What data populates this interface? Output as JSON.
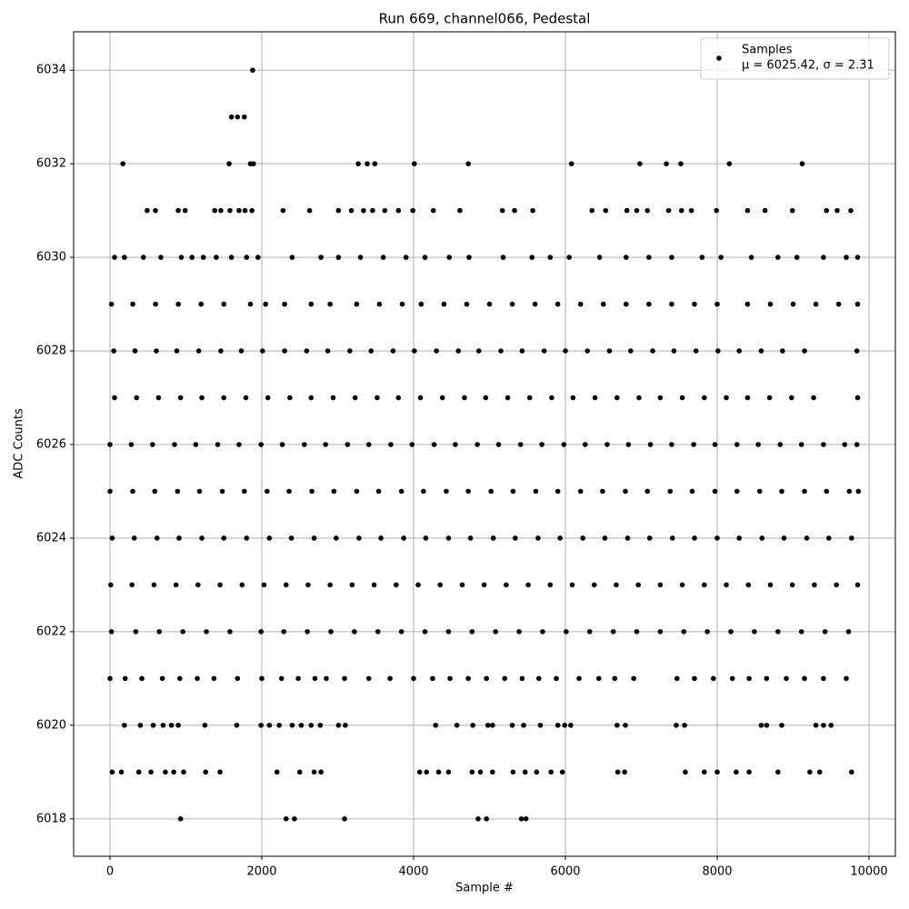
{
  "chart_data": {
    "type": "scatter",
    "title": "Run 669, channel066, Pedestal",
    "xlabel": "Sample #",
    "ylabel": "ADC Counts",
    "xlim": [
      -479,
      10347
    ],
    "ylim": [
      6017.2,
      6034.82
    ],
    "xticks": [
      0,
      2000,
      4000,
      6000,
      8000,
      10000
    ],
    "yticks": [
      6018,
      6020,
      6022,
      6024,
      6026,
      6028,
      6030,
      6032,
      6034
    ],
    "grid": true,
    "legend": "upper right",
    "series": [
      {
        "name": "Samples",
        "legend_note": "μ = 6025.42, σ = 2.31",
        "color": "#000000",
        "x": [
          1880,
          1600,
          1680,
          1770,
          170,
          1570,
          1850,
          1890,
          3270,
          3390,
          3490,
          4010,
          4720,
          6080,
          6980,
          7330,
          7520,
          8160,
          9120,
          490,
          600,
          900,
          990,
          1380,
          1460,
          1580,
          1700,
          1780,
          1870,
          2280,
          2630,
          3010,
          3180,
          3340,
          3460,
          3620,
          3800,
          3990,
          4260,
          4610,
          5170,
          5330,
          5570,
          6350,
          6530,
          6810,
          6940,
          7080,
          7360,
          7530,
          7660,
          7990,
          8400,
          8630,
          8990,
          9440,
          9580,
          9760,
          60,
          190,
          440,
          670,
          940,
          1080,
          1230,
          1400,
          1600,
          1800,
          1950,
          2400,
          2780,
          3010,
          3300,
          3600,
          3900,
          4150,
          4470,
          4730,
          5180,
          5560,
          5800,
          6050,
          6450,
          6800,
          7100,
          7400,
          7800,
          8050,
          8450,
          8800,
          9050,
          9400,
          9700,
          9850,
          20,
          300,
          600,
          900,
          1200,
          1500,
          1850,
          2050,
          2300,
          2650,
          2900,
          3250,
          3550,
          3850,
          4100,
          4400,
          4700,
          5000,
          5300,
          5600,
          5900,
          6200,
          6500,
          6800,
          7100,
          7400,
          7700,
          8000,
          8400,
          8700,
          9000,
          9300,
          9600,
          9850,
          50,
          330,
          610,
          880,
          1170,
          1460,
          1730,
          2010,
          2300,
          2590,
          2870,
          3160,
          3440,
          3730,
          4010,
          4300,
          4590,
          4860,
          5150,
          5430,
          5720,
          6000,
          6290,
          6580,
          6860,
          7150,
          7430,
          7720,
          8010,
          8290,
          8580,
          8860,
          9150,
          9840,
          60,
          350,
          640,
          930,
          1210,
          1500,
          1790,
          2080,
          2370,
          2650,
          2940,
          3230,
          3520,
          3800,
          4090,
          4380,
          4670,
          4950,
          5240,
          5530,
          5820,
          6100,
          6390,
          6680,
          6970,
          7250,
          7540,
          7830,
          8120,
          8400,
          8690,
          8980,
          9270,
          9850,
          0,
          280,
          560,
          850,
          1130,
          1420,
          1700,
          1990,
          2270,
          2560,
          2840,
          3130,
          3410,
          3700,
          3980,
          4270,
          4550,
          4840,
          5120,
          5410,
          5690,
          5980,
          6260,
          6550,
          6830,
          7120,
          7400,
          7690,
          7970,
          8260,
          8540,
          8830,
          9110,
          9400,
          9680,
          9840,
          0,
          300,
          590,
          890,
          1180,
          1480,
          1770,
          2070,
          2360,
          2660,
          2950,
          3250,
          3540,
          3840,
          4130,
          4430,
          4720,
          5020,
          5310,
          5610,
          5900,
          6200,
          6490,
          6790,
          7080,
          7380,
          7670,
          7970,
          8260,
          8560,
          8850,
          9150,
          9440,
          9740,
          9860,
          30,
          320,
          620,
          910,
          1210,
          1500,
          1800,
          2100,
          2390,
          2690,
          2980,
          3280,
          3570,
          3870,
          4160,
          4460,
          4750,
          5050,
          5340,
          5640,
          5930,
          6230,
          6520,
          6820,
          7110,
          7410,
          7700,
          8000,
          8290,
          8590,
          8880,
          9180,
          9470,
          9770,
          10,
          290,
          580,
          870,
          1160,
          1450,
          1740,
          2030,
          2320,
          2610,
          2900,
          3190,
          3480,
          3770,
          4060,
          4350,
          4640,
          4930,
          5220,
          5510,
          5800,
          6090,
          6380,
          6670,
          6960,
          7250,
          7540,
          7830,
          8120,
          8410,
          8700,
          8990,
          9280,
          9570,
          9850,
          20,
          340,
          650,
          960,
          1270,
          1580,
          1990,
          2290,
          2600,
          2910,
          3220,
          3530,
          3840,
          4150,
          4460,
          4770,
          5080,
          5390,
          5700,
          6010,
          6320,
          6630,
          6940,
          7250,
          7560,
          7870,
          8180,
          8490,
          8800,
          9110,
          9420,
          9730,
          0,
          200,
          420,
          690,
          920,
          1150,
          1370,
          1680,
          2000,
          2260,
          2480,
          2700,
          2850,
          3090,
          3410,
          3690,
          4000,
          4250,
          4480,
          4720,
          4960,
          5200,
          5430,
          5650,
          5880,
          6180,
          6440,
          6650,
          6900,
          7470,
          7700,
          7950,
          8200,
          8420,
          8650,
          8910,
          9150,
          9400,
          9700,
          190,
          400,
          570,
          700,
          810,
          900,
          1250,
          1670,
          1990,
          2100,
          2230,
          2400,
          2520,
          2650,
          2770,
          3010,
          3100,
          4290,
          4570,
          4780,
          4980,
          5040,
          5300,
          5450,
          5670,
          5900,
          5990,
          6070,
          6680,
          6790,
          7460,
          7570,
          8580,
          8650,
          8850,
          9300,
          9400,
          9500,
          30,
          150,
          380,
          540,
          730,
          840,
          970,
          1260,
          1450,
          2200,
          2500,
          2690,
          2780,
          4080,
          4170,
          4330,
          4460,
          4770,
          4880,
          5040,
          5310,
          5470,
          5620,
          5810,
          5960,
          6690,
          6780,
          7580,
          7830,
          8000,
          8250,
          8420,
          8800,
          9220,
          9350,
          9770,
          930,
          2320,
          2430,
          3090,
          4850,
          4960,
          5420,
          5480
        ],
        "values": [
          6034,
          6033,
          6033,
          6033,
          6032,
          6032,
          6032,
          6032,
          6032,
          6032,
          6032,
          6032,
          6032,
          6032,
          6032,
          6032,
          6032,
          6032,
          6032,
          6031,
          6031,
          6031,
          6031,
          6031,
          6031,
          6031,
          6031,
          6031,
          6031,
          6031,
          6031,
          6031,
          6031,
          6031,
          6031,
          6031,
          6031,
          6031,
          6031,
          6031,
          6031,
          6031,
          6031,
          6031,
          6031,
          6031,
          6031,
          6031,
          6031,
          6031,
          6031,
          6031,
          6031,
          6031,
          6031,
          6031,
          6031,
          6031,
          6030,
          6030,
          6030,
          6030,
          6030,
          6030,
          6030,
          6030,
          6030,
          6030,
          6030,
          6030,
          6030,
          6030,
          6030,
          6030,
          6030,
          6030,
          6030,
          6030,
          6030,
          6030,
          6030,
          6030,
          6030,
          6030,
          6030,
          6030,
          6030,
          6030,
          6030,
          6030,
          6030,
          6030,
          6030,
          6030,
          6029,
          6029,
          6029,
          6029,
          6029,
          6029,
          6029,
          6029,
          6029,
          6029,
          6029,
          6029,
          6029,
          6029,
          6029,
          6029,
          6029,
          6029,
          6029,
          6029,
          6029,
          6029,
          6029,
          6029,
          6029,
          6029,
          6029,
          6029,
          6029,
          6029,
          6029,
          6029,
          6029,
          6029,
          6028,
          6028,
          6028,
          6028,
          6028,
          6028,
          6028,
          6028,
          6028,
          6028,
          6028,
          6028,
          6028,
          6028,
          6028,
          6028,
          6028,
          6028,
          6028,
          6028,
          6028,
          6028,
          6028,
          6028,
          6028,
          6028,
          6028,
          6028,
          6028,
          6028,
          6028,
          6028,
          6028,
          6028,
          6027,
          6027,
          6027,
          6027,
          6027,
          6027,
          6027,
          6027,
          6027,
          6027,
          6027,
          6027,
          6027,
          6027,
          6027,
          6027,
          6027,
          6027,
          6027,
          6027,
          6027,
          6027,
          6027,
          6027,
          6027,
          6027,
          6027,
          6027,
          6027,
          6027,
          6027,
          6027,
          6027,
          6027,
          6026,
          6026,
          6026,
          6026,
          6026,
          6026,
          6026,
          6026,
          6026,
          6026,
          6026,
          6026,
          6026,
          6026,
          6026,
          6026,
          6026,
          6026,
          6026,
          6026,
          6026,
          6026,
          6026,
          6026,
          6026,
          6026,
          6026,
          6026,
          6026,
          6026,
          6026,
          6026,
          6026,
          6026,
          6026,
          6026,
          6025,
          6025,
          6025,
          6025,
          6025,
          6025,
          6025,
          6025,
          6025,
          6025,
          6025,
          6025,
          6025,
          6025,
          6025,
          6025,
          6025,
          6025,
          6025,
          6025,
          6025,
          6025,
          6025,
          6025,
          6025,
          6025,
          6025,
          6025,
          6025,
          6025,
          6025,
          6025,
          6025,
          6025,
          6025,
          6024,
          6024,
          6024,
          6024,
          6024,
          6024,
          6024,
          6024,
          6024,
          6024,
          6024,
          6024,
          6024,
          6024,
          6024,
          6024,
          6024,
          6024,
          6024,
          6024,
          6024,
          6024,
          6024,
          6024,
          6024,
          6024,
          6024,
          6024,
          6024,
          6024,
          6024,
          6024,
          6024,
          6024,
          6023,
          6023,
          6023,
          6023,
          6023,
          6023,
          6023,
          6023,
          6023,
          6023,
          6023,
          6023,
          6023,
          6023,
          6023,
          6023,
          6023,
          6023,
          6023,
          6023,
          6023,
          6023,
          6023,
          6023,
          6023,
          6023,
          6023,
          6023,
          6023,
          6023,
          6023,
          6023,
          6023,
          6023,
          6023,
          6022,
          6022,
          6022,
          6022,
          6022,
          6022,
          6022,
          6022,
          6022,
          6022,
          6022,
          6022,
          6022,
          6022,
          6022,
          6022,
          6022,
          6022,
          6022,
          6022,
          6022,
          6022,
          6022,
          6022,
          6022,
          6022,
          6022,
          6022,
          6022,
          6022,
          6022,
          6022,
          6021,
          6021,
          6021,
          6021,
          6021,
          6021,
          6021,
          6021,
          6021,
          6021,
          6021,
          6021,
          6021,
          6021,
          6021,
          6021,
          6021,
          6021,
          6021,
          6021,
          6021,
          6021,
          6021,
          6021,
          6021,
          6021,
          6021,
          6021,
          6021,
          6021,
          6021,
          6021,
          6021,
          6021,
          6021,
          6021,
          6021,
          6021,
          6021,
          6020,
          6020,
          6020,
          6020,
          6020,
          6020,
          6020,
          6020,
          6020,
          6020,
          6020,
          6020,
          6020,
          6020,
          6020,
          6020,
          6020,
          6020,
          6020,
          6020,
          6020,
          6020,
          6020,
          6020,
          6020,
          6020,
          6020,
          6020,
          6020,
          6020,
          6020,
          6020,
          6020,
          6020,
          6020,
          6020,
          6020,
          6020,
          6019,
          6019,
          6019,
          6019,
          6019,
          6019,
          6019,
          6019,
          6019,
          6019,
          6019,
          6019,
          6019,
          6019,
          6019,
          6019,
          6019,
          6019,
          6019,
          6019,
          6019,
          6019,
          6019,
          6019,
          6019,
          6019,
          6019,
          6019,
          6019,
          6019,
          6019,
          6019,
          6019,
          6019,
          6019,
          6019,
          6018,
          6018,
          6018,
          6018,
          6018,
          6018,
          6018,
          6018
        ]
      }
    ]
  }
}
